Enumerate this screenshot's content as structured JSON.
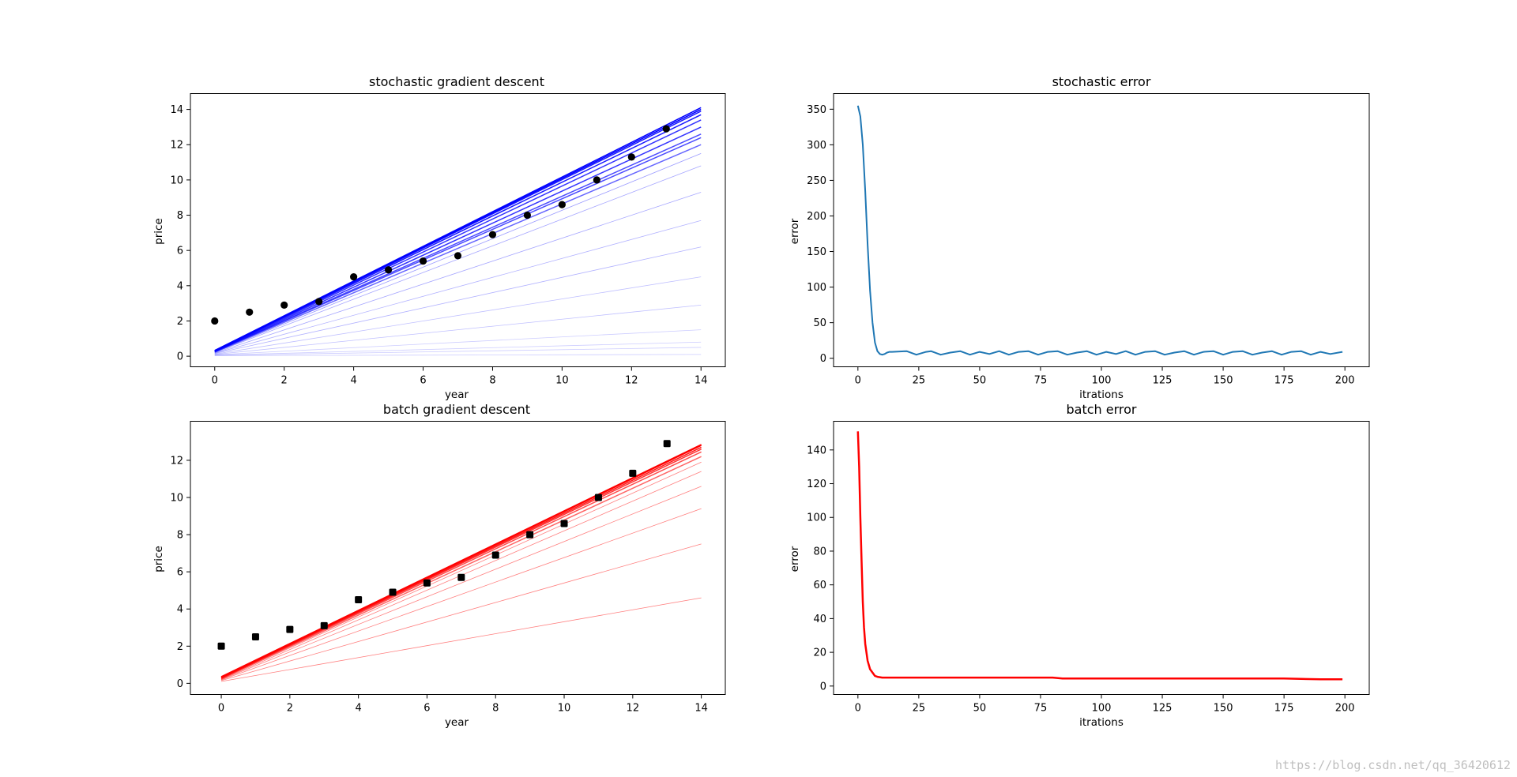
{
  "watermark": "https://blog.csdn.net/qq_36420612",
  "chart_data": [
    {
      "id": "sgd",
      "type": "scatter",
      "title": "stochastic gradient descent",
      "xlabel": "year",
      "ylabel": "price",
      "xlim": [
        -0.7,
        14.7
      ],
      "ylim": [
        -0.6,
        14.9
      ],
      "xticks": [
        0,
        2,
        4,
        6,
        8,
        10,
        12,
        14
      ],
      "yticks": [
        0,
        2,
        4,
        6,
        8,
        10,
        12,
        14
      ],
      "grid": false,
      "colors": {
        "points": "#000000",
        "lines": "#0000ff"
      },
      "points": {
        "x": [
          0,
          1,
          2,
          3,
          4,
          5,
          6,
          7,
          8,
          9,
          10,
          11,
          12,
          13
        ],
        "y": [
          2.0,
          2.5,
          2.9,
          3.1,
          4.5,
          4.9,
          5.4,
          5.7,
          6.9,
          8.0,
          8.6,
          10.0,
          11.3,
          12.9
        ]
      },
      "fit_lines": [
        {
          "x": [
            0,
            14
          ],
          "y": [
            0.03,
            0.1
          ],
          "opacity": 0.2
        },
        {
          "x": [
            0,
            14
          ],
          "y": [
            0.05,
            0.5
          ],
          "opacity": 0.2
        },
        {
          "x": [
            0,
            14
          ],
          "y": [
            0.06,
            0.8
          ],
          "opacity": 0.2
        },
        {
          "x": [
            0,
            14
          ],
          "y": [
            0.08,
            1.5
          ],
          "opacity": 0.2
        },
        {
          "x": [
            0,
            14
          ],
          "y": [
            0.1,
            2.9
          ],
          "opacity": 0.25
        },
        {
          "x": [
            0,
            14
          ],
          "y": [
            0.12,
            4.5
          ],
          "opacity": 0.25
        },
        {
          "x": [
            0,
            14
          ],
          "y": [
            0.15,
            6.2
          ],
          "opacity": 0.3
        },
        {
          "x": [
            0,
            14
          ],
          "y": [
            0.17,
            7.7
          ],
          "opacity": 0.3
        },
        {
          "x": [
            0,
            14
          ],
          "y": [
            0.19,
            9.3
          ],
          "opacity": 0.35
        },
        {
          "x": [
            0,
            14
          ],
          "y": [
            0.21,
            10.8
          ],
          "opacity": 0.35
        },
        {
          "x": [
            0,
            14
          ],
          "y": [
            0.22,
            11.5
          ],
          "opacity": 0.4
        },
        {
          "x": [
            0,
            14
          ],
          "y": [
            0.24,
            12.0
          ],
          "opacity": 0.6
        },
        {
          "x": [
            0,
            14
          ],
          "y": [
            0.26,
            12.4
          ],
          "opacity": 0.7
        },
        {
          "x": [
            0,
            14
          ],
          "y": [
            0.27,
            12.6
          ],
          "opacity": 0.7
        },
        {
          "x": [
            0,
            14
          ],
          "y": [
            0.28,
            13.0
          ],
          "opacity": 0.8
        },
        {
          "x": [
            0,
            14
          ],
          "y": [
            0.29,
            13.4
          ],
          "opacity": 0.8
        },
        {
          "x": [
            0,
            14
          ],
          "y": [
            0.3,
            13.7
          ],
          "opacity": 0.9
        },
        {
          "x": [
            0,
            14
          ],
          "y": [
            0.31,
            13.9
          ],
          "opacity": 0.9
        },
        {
          "x": [
            0,
            14
          ],
          "y": [
            0.32,
            14.0
          ],
          "opacity": 1.0
        },
        {
          "x": [
            0,
            14
          ],
          "y": [
            0.33,
            14.1
          ],
          "opacity": 1.0
        }
      ]
    },
    {
      "id": "sgd-error",
      "type": "line",
      "title": "stochastic error",
      "xlabel": "itrations",
      "ylabel": "error",
      "xlim": [
        -10,
        210
      ],
      "ylim": [
        -12,
        372
      ],
      "xticks": [
        0,
        25,
        50,
        75,
        100,
        125,
        150,
        175,
        200
      ],
      "yticks": [
        0,
        50,
        100,
        150,
        200,
        250,
        300,
        350
      ],
      "grid": false,
      "colors": {
        "line": "#1f77b4"
      },
      "series": [
        {
          "x": [
            0,
            1,
            2,
            3,
            4,
            5,
            6,
            7,
            8,
            9,
            10,
            11,
            12,
            13,
            14,
            20,
            24,
            28,
            30,
            34,
            38,
            42,
            46,
            50,
            54,
            58,
            62,
            66,
            70,
            74,
            78,
            82,
            86,
            90,
            94,
            98,
            102,
            106,
            110,
            114,
            118,
            122,
            126,
            130,
            134,
            138,
            142,
            146,
            150,
            154,
            158,
            162,
            166,
            170,
            174,
            178,
            182,
            186,
            190,
            194,
            199
          ],
          "y": [
            355,
            340,
            300,
            235,
            160,
            95,
            50,
            22,
            10,
            6,
            5,
            6,
            8,
            9,
            9,
            10,
            5,
            9,
            10,
            5,
            8,
            10,
            5,
            9,
            6,
            10,
            5,
            9,
            10,
            5,
            9,
            10,
            5,
            8,
            10,
            5,
            9,
            6,
            10,
            5,
            9,
            10,
            5,
            8,
            10,
            5,
            9,
            10,
            5,
            9,
            10,
            5,
            8,
            10,
            5,
            9,
            10,
            5,
            9,
            6,
            9
          ]
        }
      ]
    },
    {
      "id": "bgd",
      "type": "scatter",
      "title": "batch gradient descent",
      "xlabel": "year",
      "ylabel": "price",
      "xlim": [
        -0.9,
        14.7
      ],
      "ylim": [
        -0.6,
        14.1
      ],
      "xticks": [
        0,
        2,
        4,
        6,
        8,
        10,
        12,
        14
      ],
      "yticks": [
        0,
        2,
        4,
        6,
        8,
        10,
        12
      ],
      "grid": false,
      "colors": {
        "points": "#000000",
        "lines": "#ff0000"
      },
      "points": {
        "x": [
          0,
          1,
          2,
          3,
          4,
          5,
          6,
          7,
          8,
          9,
          10,
          11,
          12,
          13
        ],
        "y": [
          2.0,
          2.5,
          2.9,
          3.1,
          4.5,
          4.9,
          5.4,
          5.7,
          6.9,
          8.0,
          8.6,
          10.0,
          11.3,
          12.9
        ]
      },
      "fit_lines": [
        {
          "x": [
            0,
            14
          ],
          "y": [
            0.1,
            4.6
          ],
          "opacity": 0.5
        },
        {
          "x": [
            0,
            14
          ],
          "y": [
            0.15,
            7.5
          ],
          "opacity": 0.5
        },
        {
          "x": [
            0,
            14
          ],
          "y": [
            0.18,
            9.4
          ],
          "opacity": 0.5
        },
        {
          "x": [
            0,
            14
          ],
          "y": [
            0.2,
            10.6
          ],
          "opacity": 0.5
        },
        {
          "x": [
            0,
            14
          ],
          "y": [
            0.22,
            11.4
          ],
          "opacity": 0.5
        },
        {
          "x": [
            0,
            14
          ],
          "y": [
            0.24,
            11.9
          ],
          "opacity": 0.5
        },
        {
          "x": [
            0,
            14
          ],
          "y": [
            0.26,
            12.2
          ],
          "opacity": 0.6
        },
        {
          "x": [
            0,
            14
          ],
          "y": [
            0.28,
            12.45
          ],
          "opacity": 0.7
        },
        {
          "x": [
            0,
            14
          ],
          "y": [
            0.3,
            12.6
          ],
          "opacity": 0.8
        },
        {
          "x": [
            0,
            14
          ],
          "y": [
            0.32,
            12.7
          ],
          "opacity": 0.9
        },
        {
          "x": [
            0,
            14
          ],
          "y": [
            0.34,
            12.8
          ],
          "opacity": 1.0
        },
        {
          "x": [
            0,
            14
          ],
          "y": [
            0.36,
            12.85
          ],
          "opacity": 1.0
        }
      ]
    },
    {
      "id": "bgd-error",
      "type": "line",
      "title": "batch error",
      "xlabel": "itrations",
      "ylabel": "error",
      "xlim": [
        -10,
        210
      ],
      "ylim": [
        -5,
        157
      ],
      "xticks": [
        0,
        25,
        50,
        75,
        100,
        125,
        150,
        175,
        200
      ],
      "yticks": [
        0,
        20,
        40,
        60,
        80,
        100,
        120,
        140
      ],
      "grid": false,
      "colors": {
        "line": "#ff0000"
      },
      "series": [
        {
          "x": [
            0,
            0.5,
            1,
            1.5,
            2,
            2.5,
            3,
            4,
            5,
            6,
            7,
            8,
            10,
            15,
            20,
            40,
            60,
            76,
            80,
            84,
            100,
            125,
            150,
            175,
            190,
            199
          ],
          "y": [
            151,
            130,
            100,
            75,
            50,
            35,
            25,
            15,
            10,
            8,
            6,
            5.5,
            5,
            5,
            5,
            5,
            5,
            5,
            5,
            4.5,
            4.5,
            4.5,
            4.5,
            4.5,
            4,
            4
          ]
        }
      ]
    }
  ]
}
